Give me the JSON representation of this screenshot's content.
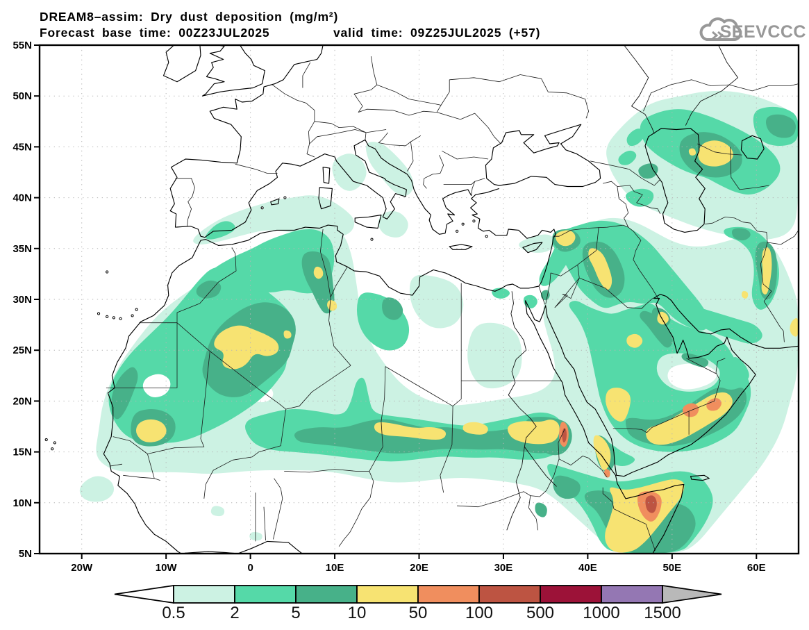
{
  "title": {
    "line1": "DREAM8–assim: Dry dust deposition (mg/m²)",
    "base_time": "Forecast base time: 00Z23JUL2025",
    "valid_time": "valid time: 09Z25JUL2025 (+57)"
  },
  "logo": {
    "text": "SEEVCCC",
    "icon": "cloud-with-arrows-icon",
    "color": "#989898"
  },
  "map": {
    "extent": {
      "lon_min": -25,
      "lon_max": 65,
      "lat_min": 5,
      "lat_max": 55
    },
    "grid_lat_step": 5,
    "grid_lon_step": 10
  },
  "axes": {
    "lat_ticks": [
      {
        "label": "55N",
        "value": 55
      },
      {
        "label": "50N",
        "value": 50
      },
      {
        "label": "45N",
        "value": 45
      },
      {
        "label": "40N",
        "value": 40
      },
      {
        "label": "35N",
        "value": 35
      },
      {
        "label": "30N",
        "value": 30
      },
      {
        "label": "25N",
        "value": 25
      },
      {
        "label": "20N",
        "value": 20
      },
      {
        "label": "15N",
        "value": 15
      },
      {
        "label": "10N",
        "value": 10
      },
      {
        "label": "5N",
        "value": 5
      }
    ],
    "lon_ticks": [
      {
        "label": "20W",
        "value": -20
      },
      {
        "label": "10W",
        "value": -10
      },
      {
        "label": "0",
        "value": 0
      },
      {
        "label": "10E",
        "value": 10
      },
      {
        "label": "20E",
        "value": 20
      },
      {
        "label": "30E",
        "value": 30
      },
      {
        "label": "40E",
        "value": 40
      },
      {
        "label": "50E",
        "value": 50
      },
      {
        "label": "60E",
        "value": 60
      }
    ]
  },
  "legend": {
    "tick_labels": [
      "0.5",
      "2",
      "5",
      "10",
      "50",
      "100",
      "500",
      "1000",
      "1500"
    ],
    "band_colors": [
      "#ccf2e3",
      "#55d9a8",
      "#47b189",
      "#f7e372",
      "#f08e5e",
      "#bd5442",
      "#9c1238",
      "#9477b3"
    ],
    "under_color": "#ffffff",
    "over_color": "#b9b9b9"
  },
  "palette": {
    "c05": "#ccf2e3",
    "c2": "#55d9a8",
    "c5": "#47b189",
    "c10": "#f7e372",
    "c50": "#f08e5e",
    "c100": "#bd5442",
    "c500": "#9c1238",
    "c1000": "#9477b3",
    "outline": "#111111",
    "grid": "#b5b5b5"
  },
  "chart_data": {
    "type": "filled-contour-map",
    "title": "DREAM8–assim: Dry dust deposition (mg/m²)",
    "units": "mg/m²",
    "levels": [
      0.5,
      2,
      5,
      10,
      50,
      100,
      500,
      1000,
      1500
    ],
    "level_colors": [
      "#ccf2e3",
      "#55d9a8",
      "#47b189",
      "#f7e372",
      "#f08e5e",
      "#bd5442",
      "#9c1238",
      "#9477b3"
    ],
    "extent": {
      "lon": [
        -25,
        65
      ],
      "lat": [
        5,
        55
      ]
    },
    "grid": {
      "lat_step": 5,
      "lon_step": 10,
      "style": "dotted"
    },
    "legend_position": "bottom",
    "hotspots": [
      {
        "region": "central Algeria (Sahara)",
        "approx_lon": 0,
        "approx_lat": 25,
        "max_band": "10–50"
      },
      {
        "region": "Ghadames / Tunisia border dots",
        "approx_lon": 9,
        "approx_lat": 31,
        "max_band": "10–50"
      },
      {
        "region": "SW Mali / Mauritania border",
        "approx_lon": -12,
        "approx_lat": 17,
        "max_band": "10–50"
      },
      {
        "region": "Sahel band Chad–Niger",
        "approx_lon": 19,
        "approx_lat": 17,
        "max_band": "10–50"
      },
      {
        "region": "Sudan along Nile",
        "approx_lon": 33,
        "approx_lat": 17,
        "max_band": "10–50"
      },
      {
        "region": "Sudan/Eritrea border streak",
        "approx_lon": 37,
        "approx_lat": 16.5,
        "max_band": "100–500"
      },
      {
        "region": "southern Red Sea crossing",
        "approx_lon": 42,
        "approx_lat": 15,
        "max_band": "50–100"
      },
      {
        "region": "west Saudi Arabia",
        "approx_lon": 43.5,
        "approx_lat": 20,
        "max_band": "10–50"
      },
      {
        "region": "southern Oman / Yemen (Dhofar)",
        "approx_lon": 53,
        "approx_lat": 19,
        "max_band": "50–100"
      },
      {
        "region": "Horn of Africa (N Somalia/Ethiopia)",
        "approx_lon": 47.5,
        "approx_lat": 10,
        "max_band": "100–500"
      },
      {
        "region": "northern Syria / Iraq",
        "approx_lon": 40,
        "approx_lat": 34,
        "max_band": "10–50"
      },
      {
        "region": "NE of Caspian Sea",
        "approx_lon": 55,
        "approx_lat": 44.5,
        "max_band": "10–50"
      },
      {
        "region": "Iran–Afghanistan border",
        "approx_lon": 61,
        "approx_lat": 33,
        "max_band": "10–50"
      }
    ]
  }
}
